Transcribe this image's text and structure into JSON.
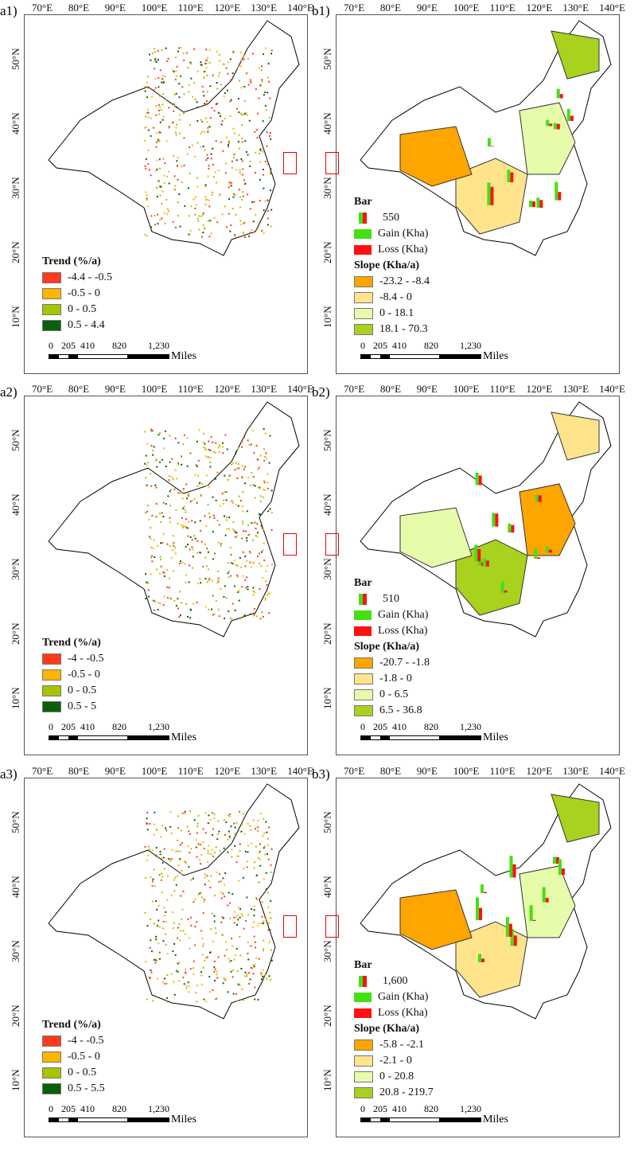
{
  "lon_ticks": [
    "70°E",
    "80°E",
    "90°E",
    "100°E",
    "110°E",
    "120°E",
    "130°E",
    "140°E"
  ],
  "lat_ticks": [
    "50°N",
    "40°N",
    "30°N",
    "20°N",
    "10°N"
  ],
  "scale": {
    "labels": [
      "0",
      "205",
      "410",
      "820",
      "1,230"
    ],
    "unit": "Miles"
  },
  "colors": {
    "trend": [
      "#ff3a1c",
      "#ffb400",
      "#a6c400",
      "#0b5e0b"
    ],
    "slope": [
      "#ffa500",
      "#ffe48c",
      "#e6fcaa",
      "#a8d21e"
    ],
    "gain": "#44e010",
    "loss": "#ff1010"
  },
  "panels": [
    {
      "label": "a1)",
      "type": "trend",
      "legend_title": "Trend (%/a)",
      "classes": [
        "-4.4 - -0.5",
        "-0.5 - 0",
        "0 - 0.5",
        "0.5 - 4.4"
      ]
    },
    {
      "label": "b1)",
      "type": "slope",
      "bar_title": "Bar",
      "bar_value": "550",
      "gain": "Gain (Kha)",
      "loss": "Loss (Kha)",
      "legend_title": "Slope (Kha/a)",
      "classes": [
        "-23.2 - -8.4",
        "-8.4 - 0",
        "0 - 18.1",
        "18.1 - 70.3"
      ]
    },
    {
      "label": "a2)",
      "type": "trend",
      "legend_title": "Trend (%/a)",
      "classes": [
        "-4 - -0.5",
        "-0.5 - 0",
        "0 - 0.5",
        "0.5 - 5"
      ]
    },
    {
      "label": "b2)",
      "type": "slope",
      "bar_title": "Bar",
      "bar_value": "510",
      "gain": "Gain (Kha)",
      "loss": "Loss (Kha)",
      "legend_title": "Slope (Kha/a)",
      "classes": [
        "-20.7 - -1.8",
        "-1.8 - 0",
        "0 - 6.5",
        "6.5 - 36.8"
      ]
    },
    {
      "label": "a3)",
      "type": "trend",
      "legend_title": "Trend (%/a)",
      "classes": [
        "-4 - -0.5",
        "-0.5 - 0",
        "0 - 0.5",
        "0.5 - 5.5"
      ]
    },
    {
      "label": "b3)",
      "type": "slope",
      "bar_title": "Bar",
      "bar_value": "1,600",
      "gain": "Gain (Kha)",
      "loss": "Loss (Kha)",
      "legend_title": "Slope (Kha/a)",
      "classes": [
        "-5.8 - -2.1",
        "-2.1 - 0",
        "0 - 20.8",
        "20.8 - 219.7"
      ]
    }
  ]
}
